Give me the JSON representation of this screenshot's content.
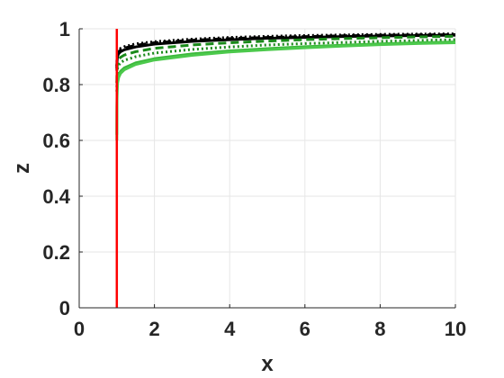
{
  "chart_data": {
    "type": "line",
    "title": "",
    "xlabel": "x",
    "ylabel": "z",
    "xlim": [
      0,
      10
    ],
    "ylim": [
      0,
      1
    ],
    "xticks": [
      "0",
      "2",
      "4",
      "6",
      "8",
      "10"
    ],
    "yticks": [
      "0",
      "0.2",
      "0.4",
      "0.6",
      "0.8",
      "1"
    ],
    "grid": true,
    "legend": "none",
    "vertical_line": {
      "x": 1.0,
      "color": "#ff0000"
    },
    "curve_x": [
      1.0,
      1.002,
      1.005,
      1.01,
      1.02,
      1.05,
      1.1,
      1.2,
      1.5,
      2,
      3,
      4,
      5,
      6,
      7,
      8,
      9,
      10
    ],
    "series": [
      {
        "style": "dotted",
        "color": "#000000",
        "values": [
          0.866,
          0.883,
          0.895,
          0.905,
          0.915,
          0.924,
          0.93,
          0.936,
          0.946,
          0.954,
          0.963,
          0.969,
          0.973,
          0.976,
          0.978,
          0.98,
          0.981,
          0.982
        ]
      },
      {
        "style": "dashed",
        "color": "#000000",
        "values": [
          0.858,
          0.876,
          0.888,
          0.898,
          0.909,
          0.918,
          0.925,
          0.931,
          0.941,
          0.95,
          0.959,
          0.965,
          0.969,
          0.972,
          0.975,
          0.977,
          0.978,
          0.979
        ]
      },
      {
        "style": "solid",
        "color": "#000000",
        "values": [
          0.85,
          0.868,
          0.88,
          0.89,
          0.902,
          0.911,
          0.918,
          0.925,
          0.935,
          0.945,
          0.955,
          0.961,
          0.966,
          0.969,
          0.972,
          0.974,
          0.976,
          0.977
        ]
      },
      {
        "style": "dashed",
        "color": "#1a8a1a",
        "values": [
          0.805,
          0.834,
          0.852,
          0.866,
          0.879,
          0.89,
          0.898,
          0.906,
          0.918,
          0.93,
          0.942,
          0.95,
          0.956,
          0.961,
          0.965,
          0.968,
          0.971,
          0.973
        ]
      },
      {
        "style": "dotted",
        "color": "#1a8a1a",
        "values": [
          0.775,
          0.81,
          0.83,
          0.845,
          0.859,
          0.87,
          0.879,
          0.887,
          0.9,
          0.913,
          0.926,
          0.935,
          0.942,
          0.947,
          0.951,
          0.955,
          0.958,
          0.961
        ]
      },
      {
        "style": "solid",
        "color": "#3cb83c",
        "values": [
          0.62,
          0.72,
          0.76,
          0.79,
          0.815,
          0.835,
          0.848,
          0.86,
          0.878,
          0.893,
          0.91,
          0.921,
          0.929,
          0.936,
          0.941,
          0.946,
          0.95,
          0.953
        ]
      },
      {
        "style": "solid",
        "color": "#4cc94c",
        "values": [
          0.6,
          0.7,
          0.745,
          0.778,
          0.805,
          0.826,
          0.84,
          0.853,
          0.872,
          0.888,
          0.905,
          0.917,
          0.925,
          0.932,
          0.938,
          0.943,
          0.947,
          0.95
        ]
      }
    ]
  }
}
